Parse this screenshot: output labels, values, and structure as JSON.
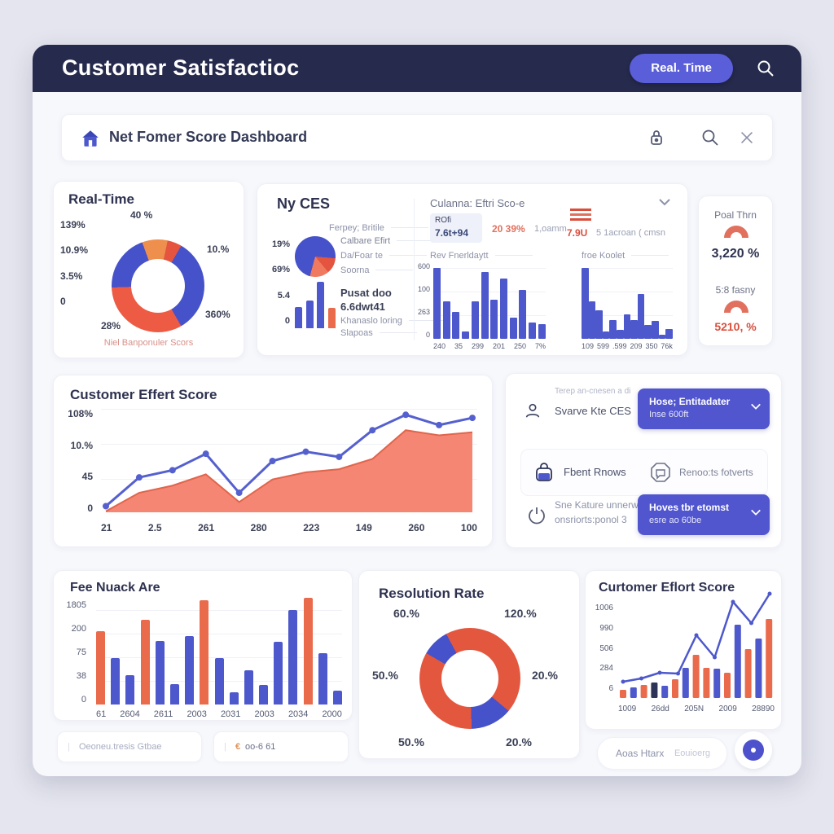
{
  "header": {
    "title": "Customer Satisfactioc",
    "button": "Real. Time"
  },
  "toolbar": {
    "title": "Net Fomer Score Dashboard"
  },
  "realtime": {
    "title": "Real-Time",
    "caption": "Niel Banponuler Scors",
    "left_labels": [
      "139%",
      "10.9%",
      "3.5%",
      "0"
    ],
    "top_label": "40 %",
    "right_top": "10.%",
    "right_bottom": "360%",
    "bottom_label": "28%"
  },
  "nyces": {
    "title": "Ny CES",
    "subtitle": "Ferpey; Britile",
    "axis": [
      "19%",
      "69%",
      "5.4",
      "0"
    ],
    "desc": [
      "Calbare Efirt",
      "Da/Foar te",
      "Soorna"
    ],
    "bold": [
      "Pusat doo",
      "6.6dwt41"
    ],
    "note": [
      "Khanaslo loring",
      "Slapoas"
    ]
  },
  "cestop": {
    "title": "Culanna: Eftri Sco-e",
    "stat1_label": "ROfi",
    "stat1_value": "7.6t+94",
    "stat2_value": "20 39%",
    "stat2_label": "1,oamm",
    "stat3_value": "7.9U",
    "stat3_label": "5 1acroan ( cmsn"
  },
  "poal": {
    "label1": "Poal Thrn",
    "value1": "3,220 %",
    "label2": "5:8 fasny",
    "value2": "5210, %"
  },
  "panel": {
    "row1_small": "Terep an-cnesen a di",
    "row1_label": "Svarve Kte CES",
    "btn1_l1": "Hose; Entitadater",
    "btn1_l2": "Inse 600ft",
    "row2_label": "Fbent Rnows",
    "row2_label2": "Renoo:ts fotverts",
    "row3_l1": "Sne Kature unnerwtes",
    "row3_l2": "onsriorts:ponol 3",
    "btn2_l1": "Hoves tbr etomst",
    "btn2_l2": "esre ao 60be"
  },
  "resolution": {
    "title": "Resolution Rate",
    "labels": [
      "60.%",
      "120.%",
      "50.%",
      "20.%",
      "50.%",
      "20.%"
    ]
  },
  "footer": {
    "field1": "Oeoneu.tresis Gtbae",
    "field2_cur": "€",
    "field2": "oo-6 61",
    "pill_a": "Aoas Htarx",
    "pill_b": "Eouioerg"
  },
  "chart_data": [
    {
      "id": "realtime-donut",
      "type": "pie",
      "title": "Real-Time",
      "segments": [
        [
          "#ef8f4e",
          0,
          12
        ],
        [
          "#e4543f",
          12,
          30
        ],
        [
          "#4652c9",
          30,
          150
        ],
        [
          "#ed5b45",
          150,
          268
        ],
        [
          "#4652c9",
          268,
          340
        ],
        [
          "#ef8f4e",
          340,
          360
        ]
      ]
    },
    {
      "id": "nyces-pie",
      "type": "pie",
      "segments": [
        [
          "#4652c9",
          0,
          95
        ],
        [
          "#e4543f",
          95,
          140
        ],
        [
          "#f07a60",
          140,
          195
        ],
        [
          "#4652c9",
          195,
          360
        ]
      ]
    },
    {
      "id": "nyces-minibars",
      "type": "bar",
      "values": [
        45,
        60,
        100,
        44
      ],
      "colors": [
        "#4d58cc",
        "#4d58cc",
        "#4d58cc",
        "#ea6a4c"
      ]
    },
    {
      "id": "rev-fnerldaytt",
      "type": "bar",
      "title": "Rev Fnerldaytt",
      "y": [
        "600",
        "100",
        "263",
        "0"
      ],
      "x": [
        "240",
        "35",
        "299",
        "201",
        "250",
        "7%"
      ],
      "values": [
        95,
        50,
        36,
        10,
        50,
        89,
        52,
        80,
        28,
        65,
        22,
        20
      ]
    },
    {
      "id": "froe-koolet",
      "type": "bar",
      "title": "froe Koolet",
      "x": [
        "109",
        "599",
        ".599",
        "209",
        "350",
        "76k"
      ],
      "values": [
        95,
        50,
        38,
        10,
        25,
        12,
        33,
        25,
        60,
        18,
        24,
        5,
        13
      ]
    },
    {
      "id": "ces-main",
      "type": "area-line",
      "title": "Customer Effert Score",
      "y": [
        "108%",
        "10.%",
        "45",
        "0"
      ],
      "x": [
        "21",
        "2.5",
        "261",
        "280",
        "223",
        "149",
        "260",
        "100"
      ],
      "line": [
        6,
        34,
        41,
        57,
        19,
        50,
        59,
        54,
        80,
        95,
        85,
        92
      ],
      "area": [
        1,
        19,
        26,
        37,
        10,
        32,
        39,
        42,
        52,
        80,
        75,
        78
      ],
      "line_color": "#5560cf",
      "area_color": "#f4806d"
    },
    {
      "id": "fee-nuack",
      "type": "bar",
      "title": "Fee Nuack Are",
      "y": [
        "1805",
        "200",
        "75",
        "38",
        "0"
      ],
      "x": [
        "61",
        "2604",
        "2611",
        "2003",
        "2031",
        "2003",
        "2034",
        "2000"
      ],
      "values": [
        68,
        43,
        27,
        79,
        59,
        19,
        64,
        97,
        43,
        11,
        32,
        18,
        58,
        88,
        99,
        48,
        13
      ],
      "colors": [
        "#ea6a4c",
        "#4d58cc",
        "#4d58cc",
        "#ea6a4c",
        "#4d58cc",
        "#4d58cc",
        "#4d58cc",
        "#ea6a4c",
        "#4d58cc",
        "#4d58cc",
        "#4d58cc",
        "#4d58cc",
        "#4d58cc",
        "#4d58cc",
        "#ea6a4c",
        "#4d58cc",
        "#4d58cc"
      ]
    },
    {
      "id": "resolution-donut",
      "type": "pie",
      "title": "Resolution Rate",
      "segments": [
        [
          "#e4573f",
          0,
          130
        ],
        [
          "#4652c9",
          130,
          178
        ],
        [
          "#e4573f",
          178,
          300
        ],
        [
          "#4652c9",
          300,
          332
        ],
        [
          "#e4573f",
          332,
          360
        ]
      ]
    },
    {
      "id": "ces-bottom",
      "type": "bar-line",
      "title": "Curtomer Eflort Score",
      "y": [
        "1006",
        "990",
        "506",
        "284",
        "6"
      ],
      "x": [
        "1009",
        "26dd",
        "205N",
        "2009",
        "28890"
      ],
      "bars": [
        10,
        13,
        16,
        19,
        15,
        23,
        37,
        53,
        37,
        36,
        31,
        90,
        60,
        73,
        97
      ],
      "colors": [
        "#ea6a4c",
        "#4d58cc",
        "#ea6a4c",
        "#2e3358",
        "#4d58cc",
        "#ea6a4c",
        "#4d58cc",
        "#ea6a4c",
        "#ea6a4c",
        "#4d58cc",
        "#ea6a4c",
        "#4d58cc",
        "#ea6a4c",
        "#4d58cc",
        "#ea6a4c"
      ],
      "line": [
        20,
        24,
        31,
        30,
        77,
        50,
        118,
        92,
        128
      ],
      "line_color": "#4d58cc"
    }
  ]
}
